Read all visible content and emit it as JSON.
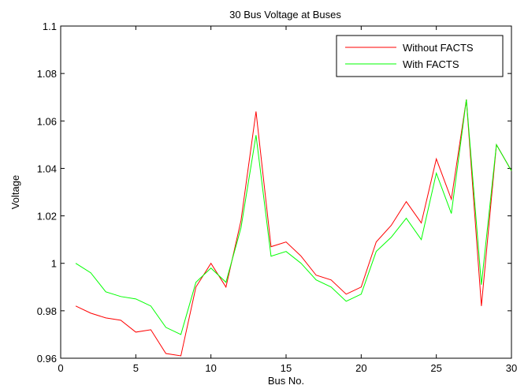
{
  "chart_data": {
    "type": "line",
    "title": "30 Bus Voltage at Buses",
    "xlabel": "Bus No.",
    "ylabel": "Voltage",
    "xlim": [
      0,
      30
    ],
    "ylim": [
      0.96,
      1.1
    ],
    "xticks": [
      0,
      5,
      10,
      15,
      20,
      25,
      30
    ],
    "yticks": [
      0.96,
      0.98,
      1,
      1.02,
      1.04,
      1.06,
      1.08,
      1.1
    ],
    "xtick_labels": [
      "0",
      "5",
      "10",
      "15",
      "20",
      "25",
      "30"
    ],
    "ytick_labels": [
      "0.96",
      "0.98",
      "1",
      "1.02",
      "1.04",
      "1.06",
      "1.08",
      "1.1"
    ],
    "grid": false,
    "legend_position": "top-right",
    "x": [
      1,
      2,
      3,
      4,
      5,
      6,
      7,
      8,
      9,
      10,
      11,
      12,
      13,
      14,
      15,
      16,
      17,
      18,
      19,
      20,
      21,
      22,
      23,
      24,
      25,
      26,
      27,
      28,
      29,
      30
    ],
    "series": [
      {
        "name": "Without FACTS",
        "color": "#ff0000",
        "values": [
          0.982,
          0.979,
          0.977,
          0.976,
          0.971,
          0.972,
          0.962,
          0.961,
          0.99,
          1.0,
          0.99,
          1.018,
          1.064,
          1.007,
          1.009,
          1.003,
          0.995,
          0.993,
          0.987,
          0.99,
          1.009,
          1.016,
          1.026,
          1.017,
          1.044,
          1.027,
          1.069,
          0.982,
          1.05,
          1.039
        ]
      },
      {
        "name": "With FACTS",
        "color": "#00ff00",
        "values": [
          1.0,
          0.996,
          0.988,
          0.986,
          0.985,
          0.982,
          0.973,
          0.97,
          0.992,
          0.998,
          0.992,
          1.015,
          1.054,
          1.003,
          1.005,
          1.0,
          0.993,
          0.99,
          0.984,
          0.987,
          1.005,
          1.011,
          1.019,
          1.01,
          1.038,
          1.021,
          1.069,
          0.991,
          1.05,
          1.039
        ]
      }
    ]
  }
}
